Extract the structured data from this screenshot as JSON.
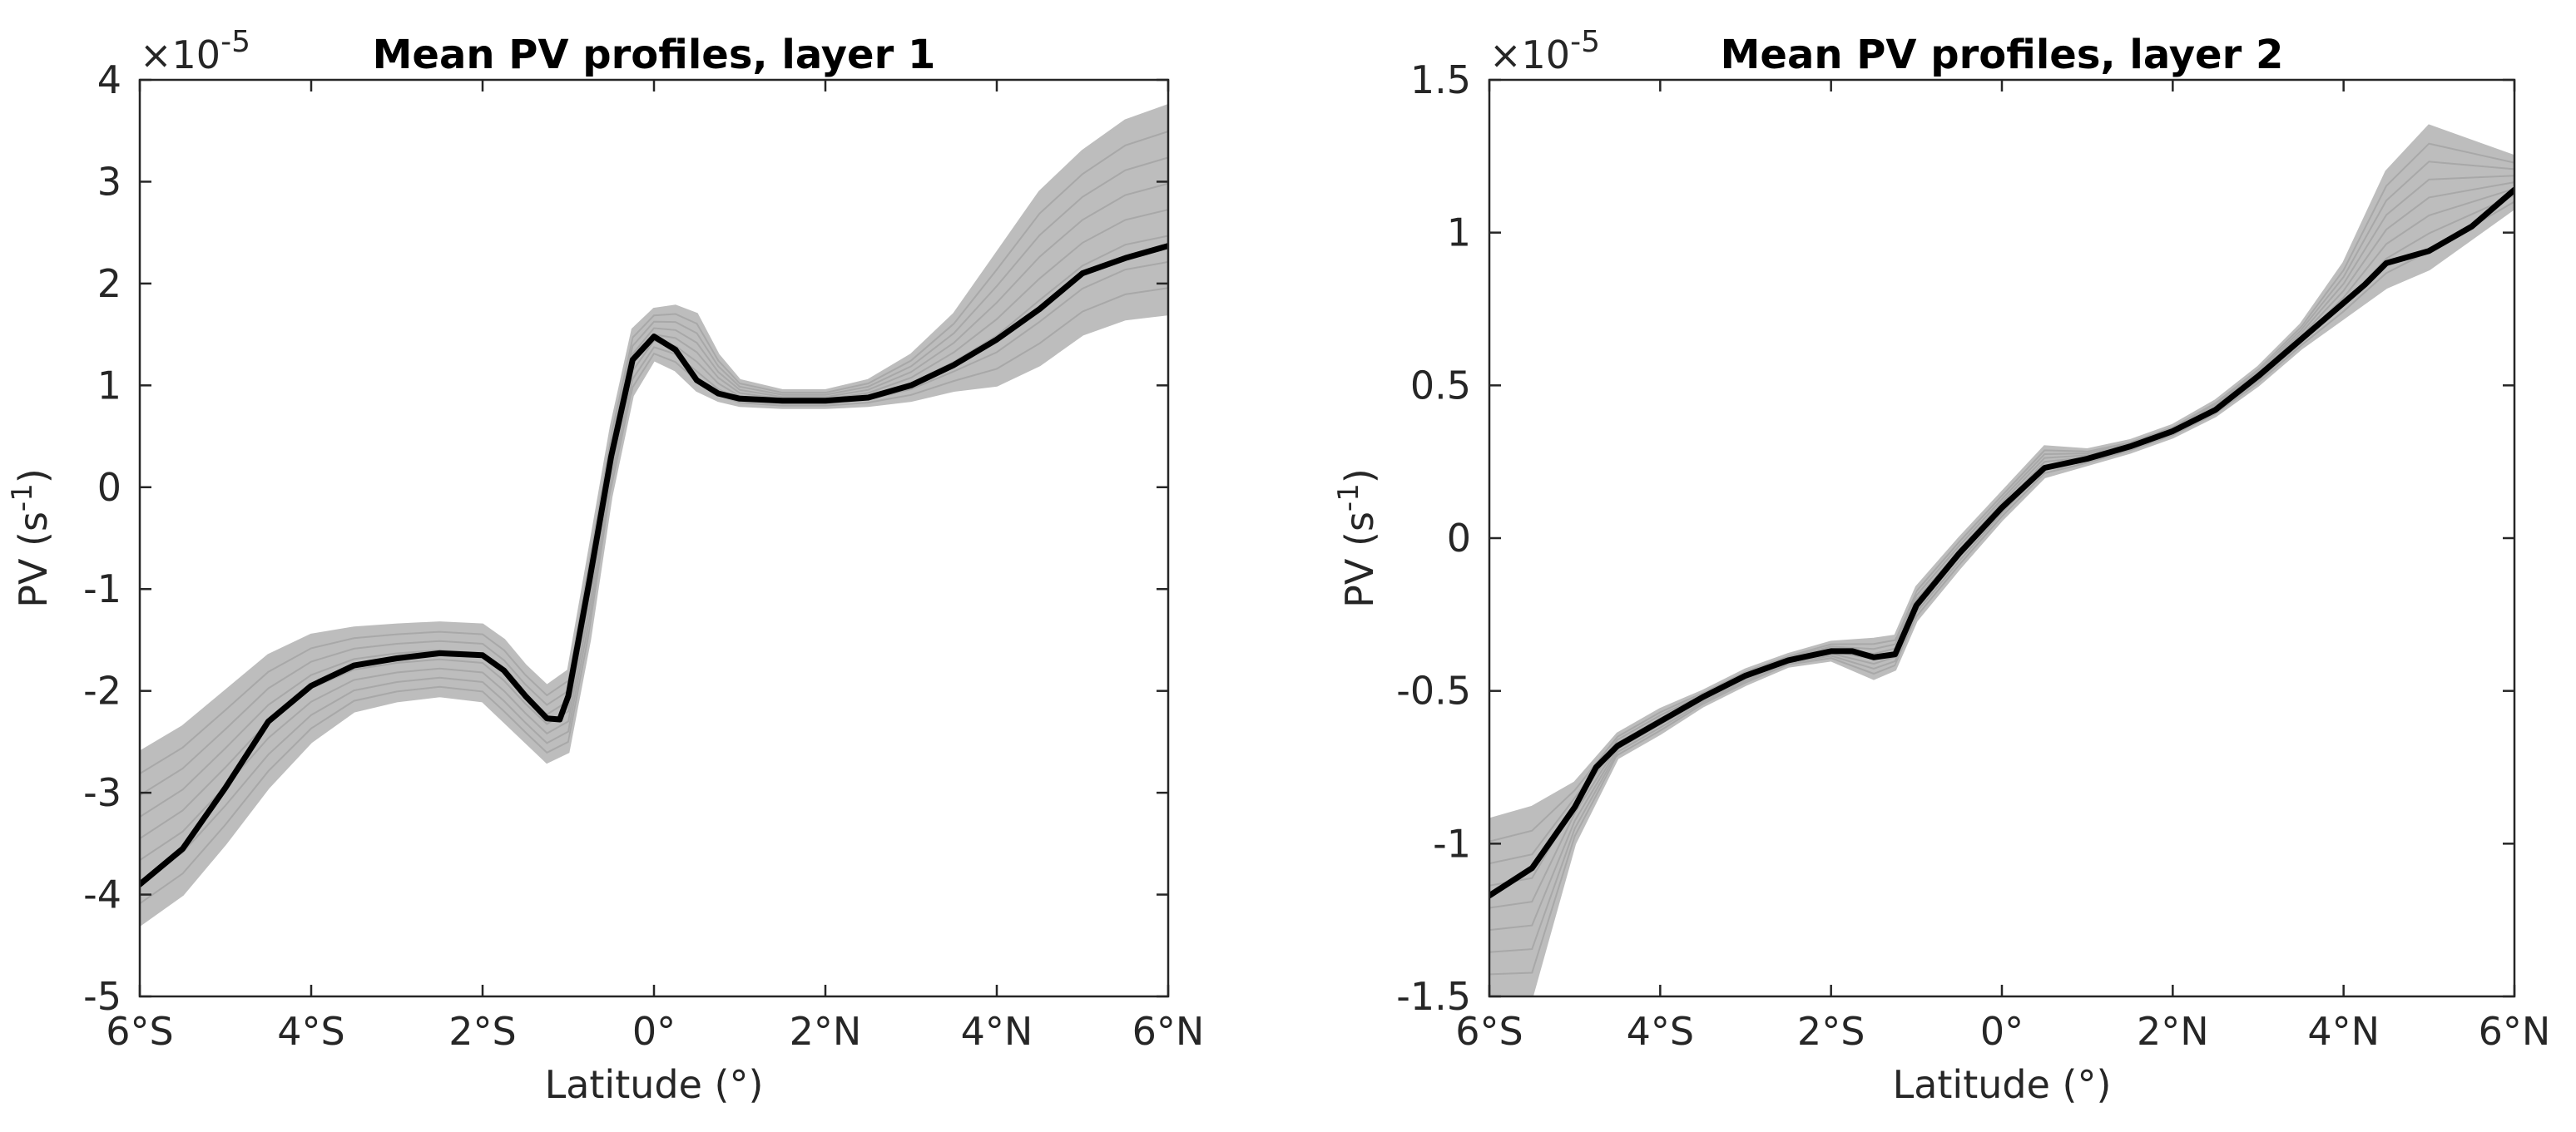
{
  "chart_data": [
    {
      "type": "line",
      "title": "Mean PV profiles, layer 1",
      "xlabel": "Latitude (°)",
      "ylabel_main": "PV (s",
      "ylabel_sup": "-1",
      "ylabel_close": ")",
      "exponent_base": "×10",
      "exponent_power": "-5",
      "xlim": [
        -6,
        6
      ],
      "ylim": [
        -5,
        4
      ],
      "xticks": [
        -6,
        -4,
        -2,
        0,
        2,
        4,
        6
      ],
      "xtick_labels": [
        "6°S",
        "4°S",
        "2°S",
        "0°",
        "2°N",
        "4°N",
        "6°N"
      ],
      "yticks": [
        -5,
        -4,
        -3,
        -2,
        -1,
        0,
        1,
        2,
        3,
        4
      ],
      "ytick_labels": [
        "-5",
        "-4",
        "-3",
        "-2",
        "-1",
        "0",
        "1",
        "2",
        "3",
        "4"
      ],
      "colors": {
        "mean": "#000000",
        "ensemble": "#bdbdbd"
      },
      "series": [
        {
          "name": "Mean PV profile",
          "x": [
            -6.0,
            -5.5,
            -5.0,
            -4.5,
            -4.0,
            -3.5,
            -3.0,
            -2.5,
            -2.0,
            -1.75,
            -1.5,
            -1.25,
            -1.1,
            -1.0,
            -0.75,
            -0.5,
            -0.25,
            0.0,
            0.25,
            0.5,
            0.75,
            1.0,
            1.5,
            2.0,
            2.5,
            3.0,
            3.5,
            4.0,
            4.5,
            5.0,
            5.5,
            6.0
          ],
          "y": [
            -3.9,
            -3.55,
            -2.95,
            -2.3,
            -1.95,
            -1.75,
            -1.68,
            -1.63,
            -1.65,
            -1.8,
            -2.05,
            -2.27,
            -2.28,
            -2.05,
            -0.9,
            0.3,
            1.25,
            1.48,
            1.35,
            1.05,
            0.92,
            0.87,
            0.85,
            0.85,
            0.88,
            1.0,
            1.2,
            1.45,
            1.75,
            2.1,
            2.25,
            2.37
          ]
        },
        {
          "name": "Ensemble spread upper",
          "x": [
            -6.0,
            -5.5,
            -5.0,
            -4.5,
            -4.0,
            -3.5,
            -3.0,
            -2.5,
            -2.0,
            -1.75,
            -1.5,
            -1.25,
            -1.0,
            -0.75,
            -0.5,
            -0.25,
            0.0,
            0.25,
            0.5,
            0.75,
            1.0,
            1.5,
            2.0,
            2.5,
            3.0,
            3.5,
            4.0,
            4.5,
            5.0,
            5.5,
            6.0
          ],
          "y": [
            -2.6,
            -2.35,
            -2.0,
            -1.65,
            -1.45,
            -1.38,
            -1.35,
            -1.33,
            -1.35,
            -1.5,
            -1.75,
            -1.95,
            -1.8,
            -0.6,
            0.6,
            1.55,
            1.75,
            1.78,
            1.7,
            1.3,
            1.05,
            0.95,
            0.95,
            1.05,
            1.3,
            1.7,
            2.3,
            2.9,
            3.3,
            3.6,
            3.75
          ]
        },
        {
          "name": "Ensemble spread lower",
          "x": [
            -6.0,
            -5.5,
            -5.0,
            -4.5,
            -4.0,
            -3.5,
            -3.0,
            -2.5,
            -2.0,
            -1.75,
            -1.5,
            -1.25,
            -1.0,
            -0.75,
            -0.5,
            -0.25,
            0.0,
            0.25,
            0.5,
            0.75,
            1.0,
            1.5,
            2.0,
            2.5,
            3.0,
            3.5,
            4.0,
            4.5,
            5.0,
            5.5,
            6.0
          ],
          "y": [
            -4.3,
            -4.0,
            -3.5,
            -2.95,
            -2.5,
            -2.2,
            -2.1,
            -2.05,
            -2.1,
            -2.3,
            -2.5,
            -2.7,
            -2.6,
            -1.5,
            -0.1,
            0.9,
            1.25,
            1.15,
            0.95,
            0.85,
            0.8,
            0.78,
            0.78,
            0.8,
            0.85,
            0.95,
            1.0,
            1.2,
            1.5,
            1.65,
            1.7
          ]
        }
      ]
    },
    {
      "type": "line",
      "title": "Mean PV profiles, layer 2",
      "xlabel": "Latitude (°)",
      "ylabel_main": "PV (s",
      "ylabel_sup": "-1",
      "ylabel_close": ")",
      "exponent_base": "×10",
      "exponent_power": "-5",
      "xlim": [
        -6,
        6
      ],
      "ylim": [
        -1.5,
        1.5
      ],
      "xticks": [
        -6,
        -4,
        -2,
        0,
        2,
        4,
        6
      ],
      "xtick_labels": [
        "6°S",
        "4°S",
        "2°S",
        "0°",
        "2°N",
        "4°N",
        "6°N"
      ],
      "yticks": [
        -1.5,
        -1,
        -0.5,
        0,
        0.5,
        1,
        1.5
      ],
      "ytick_labels": [
        "-1.5",
        "-1",
        "-0.5",
        "0",
        "0.5",
        "1",
        "1.5"
      ],
      "colors": {
        "mean": "#000000",
        "ensemble": "#bdbdbd"
      },
      "series": [
        {
          "name": "Mean PV profile",
          "x": [
            -6.0,
            -5.5,
            -5.0,
            -4.75,
            -4.5,
            -4.0,
            -3.5,
            -3.0,
            -2.5,
            -2.0,
            -1.75,
            -1.5,
            -1.25,
            -1.0,
            -0.5,
            0.0,
            0.5,
            1.0,
            1.5,
            2.0,
            2.5,
            3.0,
            3.5,
            4.0,
            4.25,
            4.5,
            5.0,
            5.5,
            6.0
          ],
          "y": [
            -1.17,
            -1.08,
            -0.88,
            -0.75,
            -0.68,
            -0.6,
            -0.52,
            -0.45,
            -0.4,
            -0.37,
            -0.37,
            -0.39,
            -0.38,
            -0.22,
            -0.05,
            0.1,
            0.23,
            0.26,
            0.3,
            0.35,
            0.42,
            0.53,
            0.65,
            0.77,
            0.83,
            0.9,
            0.94,
            1.02,
            1.14
          ]
        },
        {
          "name": "Ensemble spread upper",
          "x": [
            -6.0,
            -5.5,
            -5.0,
            -4.5,
            -4.0,
            -3.5,
            -3.0,
            -2.5,
            -2.0,
            -1.5,
            -1.25,
            -1.0,
            -0.5,
            0.0,
            0.5,
            1.0,
            1.5,
            2.0,
            2.5,
            3.0,
            3.5,
            4.0,
            4.5,
            5.0,
            5.5,
            6.0
          ],
          "y": [
            -0.92,
            -0.88,
            -0.8,
            -0.64,
            -0.56,
            -0.5,
            -0.43,
            -0.38,
            -0.34,
            -0.33,
            -0.32,
            -0.16,
            0.0,
            0.15,
            0.3,
            0.29,
            0.32,
            0.37,
            0.45,
            0.56,
            0.7,
            0.9,
            1.2,
            1.35,
            1.3,
            1.25
          ]
        },
        {
          "name": "Ensemble spread lower",
          "x": [
            -6.0,
            -5.5,
            -5.0,
            -4.5,
            -4.0,
            -3.5,
            -3.0,
            -2.5,
            -2.0,
            -1.5,
            -1.25,
            -1.0,
            -0.5,
            0.0,
            0.5,
            1.0,
            1.5,
            2.0,
            2.5,
            3.0,
            3.5,
            4.0,
            4.5,
            5.0,
            5.5,
            6.0
          ],
          "y": [
            -1.5,
            -1.5,
            -1.0,
            -0.72,
            -0.64,
            -0.55,
            -0.48,
            -0.42,
            -0.4,
            -0.46,
            -0.43,
            -0.27,
            -0.1,
            0.06,
            0.2,
            0.24,
            0.28,
            0.33,
            0.4,
            0.5,
            0.62,
            0.72,
            0.82,
            0.88,
            0.98,
            1.08
          ]
        }
      ]
    }
  ]
}
